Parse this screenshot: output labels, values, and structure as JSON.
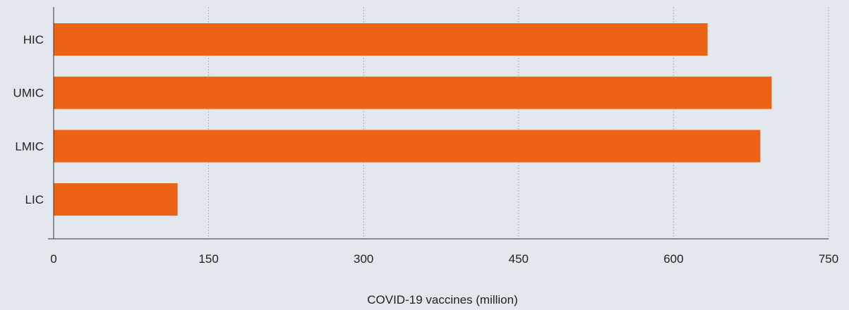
{
  "colors": {
    "background": "#e3e8ef",
    "bar": "#ec6316",
    "axis": "#333333",
    "grid": "#9aa3ad",
    "text": "#222222"
  },
  "chart_data": {
    "type": "bar",
    "orientation": "horizontal",
    "categories": [
      "HIC",
      "UMIC",
      "LMIC",
      "LIC"
    ],
    "values": [
      633,
      695,
      684,
      120
    ],
    "title": "",
    "xlabel": "COVID-19 vaccines (million)",
    "ylabel": "",
    "xlim": [
      0,
      750
    ],
    "xticks": [
      0,
      150,
      300,
      450,
      600,
      750
    ],
    "grid": "vertical dotted",
    "legend": "none"
  }
}
